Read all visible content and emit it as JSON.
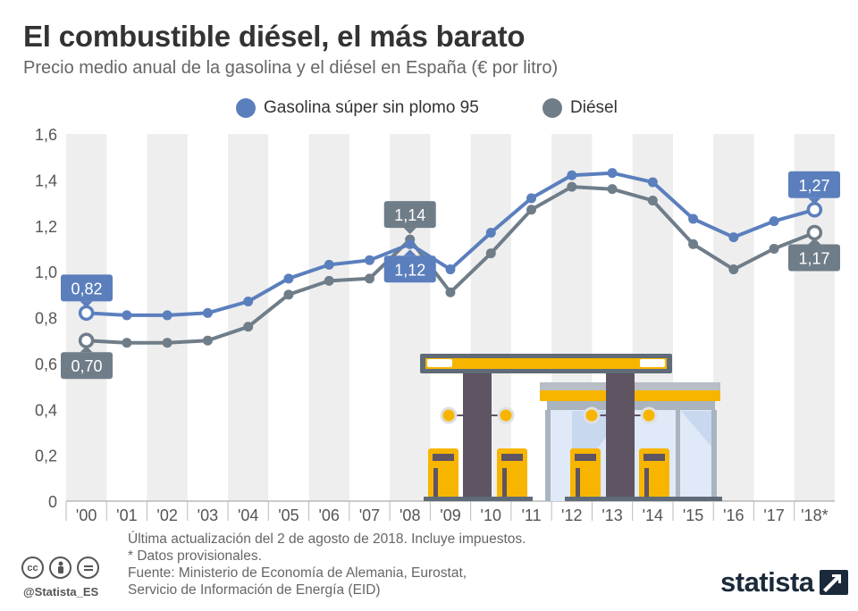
{
  "header": {
    "title": "El combustible diésel, el más barato",
    "subtitle": "Precio medio anual de la gasolina y el diésel en España (€ por litro)"
  },
  "legend": {
    "items": [
      {
        "label": "Gasolina súper sin plomo 95",
        "color": "#5b7fbd"
      },
      {
        "label": "Diésel",
        "color": "#6f7d89"
      }
    ]
  },
  "chart_data": {
    "type": "line",
    "title": "El combustible diésel, el más barato",
    "subtitle": "Precio medio anual de la gasolina y el diésel en España (€ por litro)",
    "xlabel": "",
    "ylabel": "",
    "x": [
      "'00",
      "'01",
      "'02",
      "'03",
      "'04",
      "'05",
      "'06",
      "'07",
      "'08",
      "'09",
      "'10",
      "'11",
      "'12",
      "'13",
      "'14",
      "'15",
      "'16",
      "'17",
      "'18*"
    ],
    "ylim": [
      0,
      1.6
    ],
    "yticks": [
      "0",
      "0,2",
      "0,4",
      "0,6",
      "0,8",
      "1,0",
      "1,2",
      "1,4",
      "1,6"
    ],
    "grid": "alternating vertical bands",
    "legend_position": "top",
    "series": [
      {
        "name": "Gasolina súper sin plomo 95",
        "color": "#5b7fbd",
        "values": [
          0.82,
          0.81,
          0.81,
          0.82,
          0.87,
          0.97,
          1.03,
          1.05,
          1.12,
          1.01,
          1.17,
          1.32,
          1.42,
          1.43,
          1.39,
          1.23,
          1.15,
          1.22,
          1.27
        ]
      },
      {
        "name": "Diésel",
        "color": "#6f7d89",
        "values": [
          0.7,
          0.69,
          0.69,
          0.7,
          0.76,
          0.9,
          0.96,
          0.97,
          1.14,
          0.91,
          1.08,
          1.27,
          1.37,
          1.36,
          1.31,
          1.12,
          1.01,
          1.1,
          1.17
        ]
      }
    ],
    "annotations": [
      {
        "text": "0,82",
        "series": 0,
        "index": 0,
        "placement": "above"
      },
      {
        "text": "0,70",
        "series": 1,
        "index": 0,
        "placement": "below"
      },
      {
        "text": "1,14",
        "series": 1,
        "index": 8,
        "placement": "above"
      },
      {
        "text": "1,12",
        "series": 0,
        "index": 8,
        "placement": "below"
      },
      {
        "text": "1,27",
        "series": 0,
        "index": 18,
        "placement": "above"
      },
      {
        "text": "1,17",
        "series": 1,
        "index": 18,
        "placement": "below"
      }
    ]
  },
  "footer": {
    "lines": [
      "Última actualización del 2 de agosto de 2018. Incluye impuestos.",
      "* Datos provisionales.",
      "Fuente: Ministerio de Economía de Alemania, Eurostat,",
      "Servicio de Información de Energía (EID)"
    ],
    "handle": "@Statista_ES",
    "brand": "statista",
    "cc_icons": [
      "cc-icon",
      "by-icon",
      "nd-icon"
    ]
  },
  "illustration": {
    "icon": "gas-station-icon"
  }
}
